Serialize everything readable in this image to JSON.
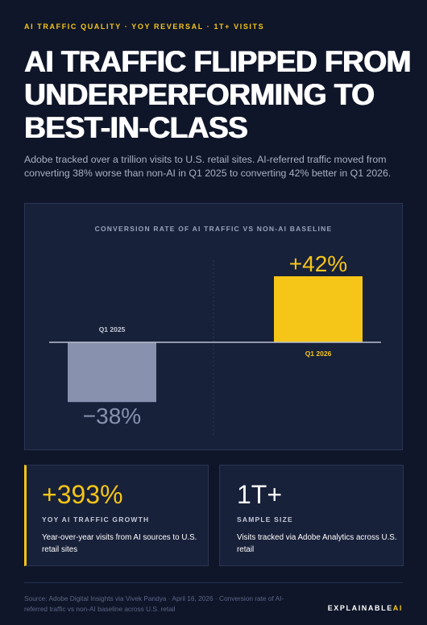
{
  "eyebrow": "AI TRAFFIC QUALITY · YOY REVERSAL · 1T+ VISITS",
  "title": [
    "AI TRAFFIC FLIPPED FROM",
    "UNDERPERFORMING TO",
    "BEST-IN-CLASS"
  ],
  "subtitle": "Adobe tracked over a trillion visits to U.S. retail sites. AI-referred traffic moved from converting 38% worse than non-AI in Q1 2025 to converting 42% better in Q1 2026.",
  "chart_data": {
    "type": "bar",
    "title": "CONVERSION RATE OF AI TRAFFIC VS NON-AI BASELINE",
    "categories": [
      "Q1 2025",
      "Q1 2026"
    ],
    "values": [
      -38,
      42
    ],
    "value_labels": [
      "−38%",
      "+42%"
    ],
    "colors": [
      "#8891ad",
      "#f5c518"
    ]
  },
  "stats": [
    {
      "value": "+393%",
      "label": "YOY AI TRAFFIC GROWTH",
      "description": "Year-over-year visits from AI sources to U.S. retail sites"
    },
    {
      "value": "1T+",
      "label": "SAMPLE SIZE",
      "description": "Visits tracked via Adobe Analytics across U.S. retail"
    }
  ],
  "source": "Source: Adobe Digital Insights via Vivek Pandya · April 16, 2026 · Conversion rate of AI-referred traffic vs non-AI baseline across U.S. retail",
  "brand": [
    "EXPLAINABLE",
    "AI"
  ]
}
